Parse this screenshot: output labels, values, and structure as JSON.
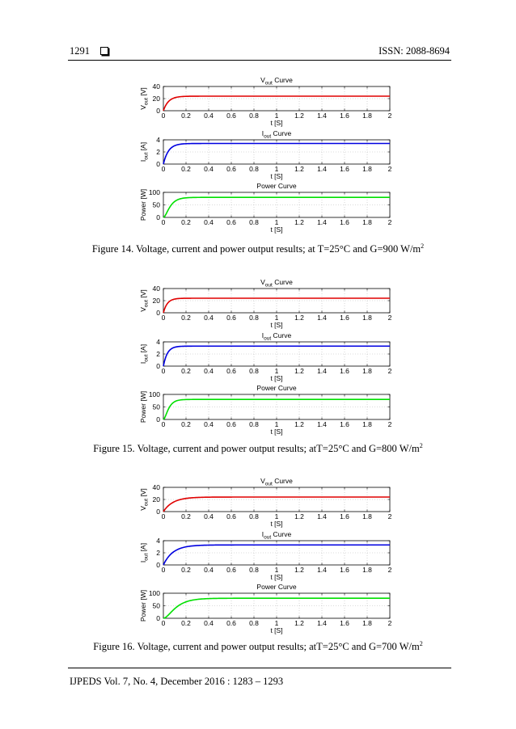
{
  "header": {
    "page_number": "1291",
    "issn": "ISSN: 2088-8694"
  },
  "footer": {
    "journal": "IJPEDS Vol. 7, No. 4, December 2016 : 1283 – 1293"
  },
  "figures": [
    {
      "caption_main": "Figure 14. Voltage, current and power output results; at T=25°C and G=900 W/m",
      "caption_sup": "2",
      "tau": 0.045,
      "chart_data": {
        "type": "line",
        "panels": [
          {
            "title": "V",
            "title_sub": "out",
            "title_tail": " Curve",
            "ylabel": "V",
            "ylabel_sub": "out",
            "ylabel_tail": " [V]",
            "xlabel": "t [S]",
            "xlim": [
              0,
              2
            ],
            "ylim": [
              0,
              40
            ],
            "yticks": [
              0,
              20,
              40
            ],
            "final": 24,
            "color": "#e00000",
            "grid": true
          },
          {
            "title": "I",
            "title_sub": "out",
            "title_tail": " Curve",
            "ylabel": "I",
            "ylabel_sub": "out",
            "ylabel_tail": " [A]",
            "xlabel": "t [S]",
            "xlim": [
              0,
              2
            ],
            "ylim": [
              0,
              4
            ],
            "yticks": [
              0,
              2,
              4
            ],
            "final": 3.4,
            "color": "#0000e0",
            "grid": true
          },
          {
            "title": "Power Curve",
            "title_sub": "",
            "title_tail": "",
            "ylabel": "Power [W]",
            "ylabel_sub": "",
            "ylabel_tail": "",
            "xlabel": "t [S]",
            "xlim": [
              0,
              2
            ],
            "ylim": [
              0,
              100
            ],
            "yticks": [
              0,
              50,
              100
            ],
            "final": 80,
            "color": "#00e000",
            "grid": true,
            "power": true
          }
        ],
        "xticks": [
          "0",
          "0.2",
          "0.4",
          "0.6",
          "0.8",
          "1",
          "1.2",
          "1.4",
          "1.6",
          "1.8",
          "2"
        ]
      }
    },
    {
      "caption_main": "Figure 15. Voltage, current and power output results; atT=25°C and G=800 W/m",
      "caption_sup": "2",
      "tau": 0.035,
      "chart_data": {
        "type": "line",
        "panels": [
          {
            "title": "V",
            "title_sub": "out",
            "title_tail": " Curve",
            "ylabel": "V",
            "ylabel_sub": "out",
            "ylabel_tail": " [V]",
            "xlabel": "t [S]",
            "xlim": [
              0,
              2
            ],
            "ylim": [
              0,
              40
            ],
            "yticks": [
              0,
              20,
              40
            ],
            "final": 24,
            "color": "#e00000",
            "grid": true
          },
          {
            "title": "I",
            "title_sub": "out",
            "title_tail": " Curve",
            "ylabel": "I",
            "ylabel_sub": "out",
            "ylabel_tail": " [A]",
            "xlabel": "t [S]",
            "xlim": [
              0,
              2
            ],
            "ylim": [
              0,
              4
            ],
            "yticks": [
              0,
              2,
              4
            ],
            "final": 3.3,
            "color": "#0000e0",
            "grid": true
          },
          {
            "title": "Power Curve",
            "title_sub": "",
            "title_tail": "",
            "ylabel": "Power [W]",
            "ylabel_sub": "",
            "ylabel_tail": "",
            "xlabel": "t [S]",
            "xlim": [
              0,
              2
            ],
            "ylim": [
              0,
              100
            ],
            "yticks": [
              0,
              50,
              100
            ],
            "final": 80,
            "color": "#00e000",
            "grid": true,
            "power": true
          }
        ],
        "xticks": [
          "0",
          "0.2",
          "0.4",
          "0.6",
          "0.8",
          "1",
          "1.2",
          "1.4",
          "1.6",
          "1.8",
          "2"
        ]
      }
    },
    {
      "caption_main": "Figure 16. Voltage, current and power output results; atT=25°C and G=700 W/m",
      "caption_sup": "2",
      "tau": 0.085,
      "chart_data": {
        "type": "line",
        "panels": [
          {
            "title": "V",
            "title_sub": "out",
            "title_tail": " Curve",
            "ylabel": "V",
            "ylabel_sub": "out",
            "ylabel_tail": " [V]",
            "xlabel": "t [S]",
            "xlim": [
              0,
              2
            ],
            "ylim": [
              0,
              40
            ],
            "yticks": [
              0,
              20,
              40
            ],
            "final": 24,
            "color": "#e00000",
            "grid": true
          },
          {
            "title": "I",
            "title_sub": "out",
            "title_tail": " Curve",
            "ylabel": "I",
            "ylabel_sub": "out",
            "ylabel_tail": " [A]",
            "xlabel": "t [S]",
            "xlim": [
              0,
              2
            ],
            "ylim": [
              0,
              4
            ],
            "yticks": [
              0,
              2,
              4
            ],
            "final": 3.3,
            "color": "#0000e0",
            "grid": true
          },
          {
            "title": "Power Curve",
            "title_sub": "",
            "title_tail": "",
            "ylabel": "Power [W]",
            "ylabel_sub": "",
            "ylabel_tail": "",
            "xlabel": "t [S]",
            "xlim": [
              0,
              2
            ],
            "ylim": [
              0,
              100
            ],
            "yticks": [
              0,
              50,
              100
            ],
            "final": 80,
            "color": "#00e000",
            "grid": true,
            "power": true
          }
        ],
        "xticks": [
          "0",
          "0.2",
          "0.4",
          "0.6",
          "0.8",
          "1",
          "1.2",
          "1.4",
          "1.6",
          "1.8",
          "2"
        ]
      }
    }
  ]
}
